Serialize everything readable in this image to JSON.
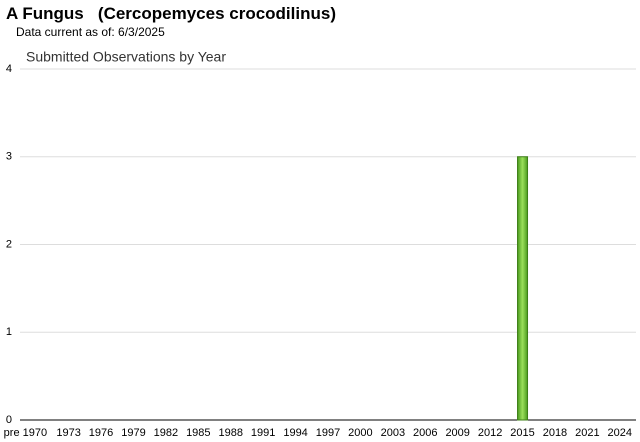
{
  "chart_data": {
    "type": "bar",
    "title": "A Fungus   (Cercopemyces crocodilinus)",
    "subtitle": "Data current as of: 6/3/2025",
    "chart_title": "Submitted Observations by Year",
    "categories": [
      "pre 1970",
      null,
      null,
      null,
      "1973",
      null,
      null,
      "1976",
      null,
      null,
      "1979",
      null,
      null,
      "1982",
      null,
      null,
      "1985",
      null,
      null,
      "1988",
      null,
      null,
      "1991",
      null,
      null,
      "1994",
      null,
      null,
      "1997",
      null,
      null,
      "2000",
      null,
      null,
      "2003",
      null,
      null,
      "2006",
      null,
      null,
      "2009",
      null,
      null,
      "2012",
      null,
      null,
      "2015",
      null,
      null,
      "2018",
      null,
      null,
      "2021",
      null,
      null,
      "2024",
      null
    ],
    "values": [
      0,
      0,
      0,
      0,
      0,
      0,
      0,
      0,
      0,
      0,
      0,
      0,
      0,
      0,
      0,
      0,
      0,
      0,
      0,
      0,
      0,
      0,
      0,
      0,
      0,
      0,
      0,
      0,
      0,
      0,
      0,
      0,
      0,
      0,
      0,
      0,
      0,
      0,
      0,
      0,
      0,
      0,
      0,
      0,
      0,
      0,
      3,
      0,
      0,
      0,
      0,
      0,
      0,
      0,
      0,
      0,
      0
    ],
    "color": "#66cc33",
    "ylim": [
      0,
      4
    ],
    "yticks": [
      0,
      1,
      2,
      3,
      4
    ],
    "grid": true
  }
}
